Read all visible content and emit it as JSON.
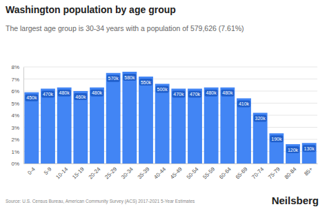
{
  "chart_data": {
    "type": "bar",
    "title": "Washington population by age group",
    "subtitle": "The largest age group is 30-34 years with a population of 579,626 (7.61%)",
    "categories": [
      "0-4",
      "5-9",
      "10-14",
      "15-19",
      "20-24",
      "25-29",
      "30-34",
      "35-39",
      "40-44",
      "45-49",
      "50-54",
      "55-59",
      "60-64",
      "65-69",
      "70-74",
      "75-79",
      "80-84",
      "85+"
    ],
    "values": [
      5.9,
      6.2,
      6.3,
      6.0,
      6.3,
      7.5,
      7.6,
      7.2,
      6.6,
      6.2,
      6.2,
      6.3,
      6.3,
      5.4,
      4.2,
      2.5,
      1.6,
      1.7
    ],
    "population": [
      450000,
      470000,
      480000,
      460000,
      480000,
      570000,
      580000,
      550000,
      500000,
      470000,
      470000,
      480000,
      480000,
      410000,
      320000,
      190000,
      120000,
      130000
    ],
    "population_labels": [
      "450k",
      "470k",
      "480k",
      "460k",
      "480k",
      "570k",
      "580k",
      "550k",
      "500k",
      "470k",
      "470k",
      "480k",
      "480k",
      "410k",
      "320k",
      "190k",
      "120k",
      "130k"
    ],
    "color": "#4285f4",
    "ylim": [
      0,
      8
    ],
    "yticks": [
      {
        "value": 0,
        "label": "0%"
      },
      {
        "value": 1,
        "label": "1%"
      },
      {
        "value": 2,
        "label": "2%"
      },
      {
        "value": 3,
        "label": "3%"
      },
      {
        "value": 4,
        "label": "4%"
      },
      {
        "value": 5,
        "label": "5%"
      },
      {
        "value": 6,
        "label": "6%"
      },
      {
        "value": 7,
        "label": "7%"
      },
      {
        "value": 8,
        "label": "8%"
      }
    ],
    "grid": true,
    "source": "Source: U.S. Census Bureau, American Community Survey (ACS) 2017-2021 5-Year Estimates",
    "brand": "Neilsberg"
  }
}
